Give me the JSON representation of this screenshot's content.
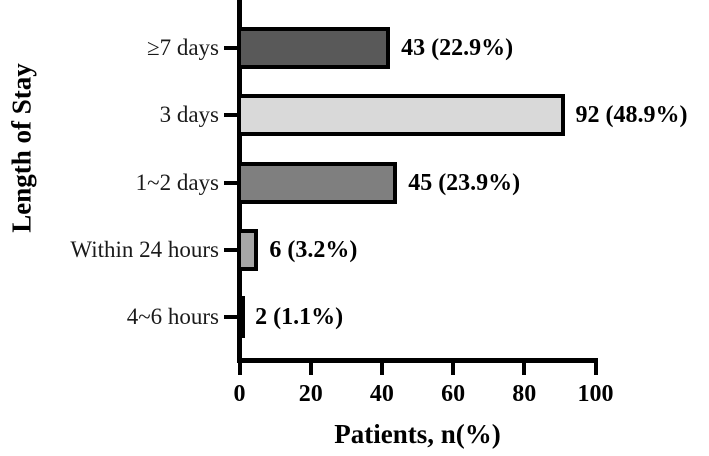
{
  "chart_data": {
    "type": "bar",
    "orientation": "horizontal",
    "title": "",
    "xlabel": "Patients, n(%)",
    "ylabel": "Length of Stay",
    "xlim": [
      0,
      100
    ],
    "x_ticks": [
      0,
      20,
      40,
      60,
      80,
      100
    ],
    "categories": [
      "≥7 days",
      "3 days",
      "1~2 days",
      "Within 24 hours",
      "4~6 hours"
    ],
    "values": [
      43,
      92,
      45,
      6,
      2
    ],
    "value_labels": [
      "43 (22.9%)",
      "92 (48.9%)",
      "45 (23.9%)",
      "6 (3.2%)",
      "2 (1.1%)"
    ],
    "bar_colors": [
      "#595959",
      "#d9d9d9",
      "#7f7f7f",
      "#a6a6a6",
      "#000000"
    ],
    "bar_border_color": "#000000",
    "axis_color": "#000000",
    "background_color": "#ffffff",
    "grid": false,
    "legend": "none"
  }
}
